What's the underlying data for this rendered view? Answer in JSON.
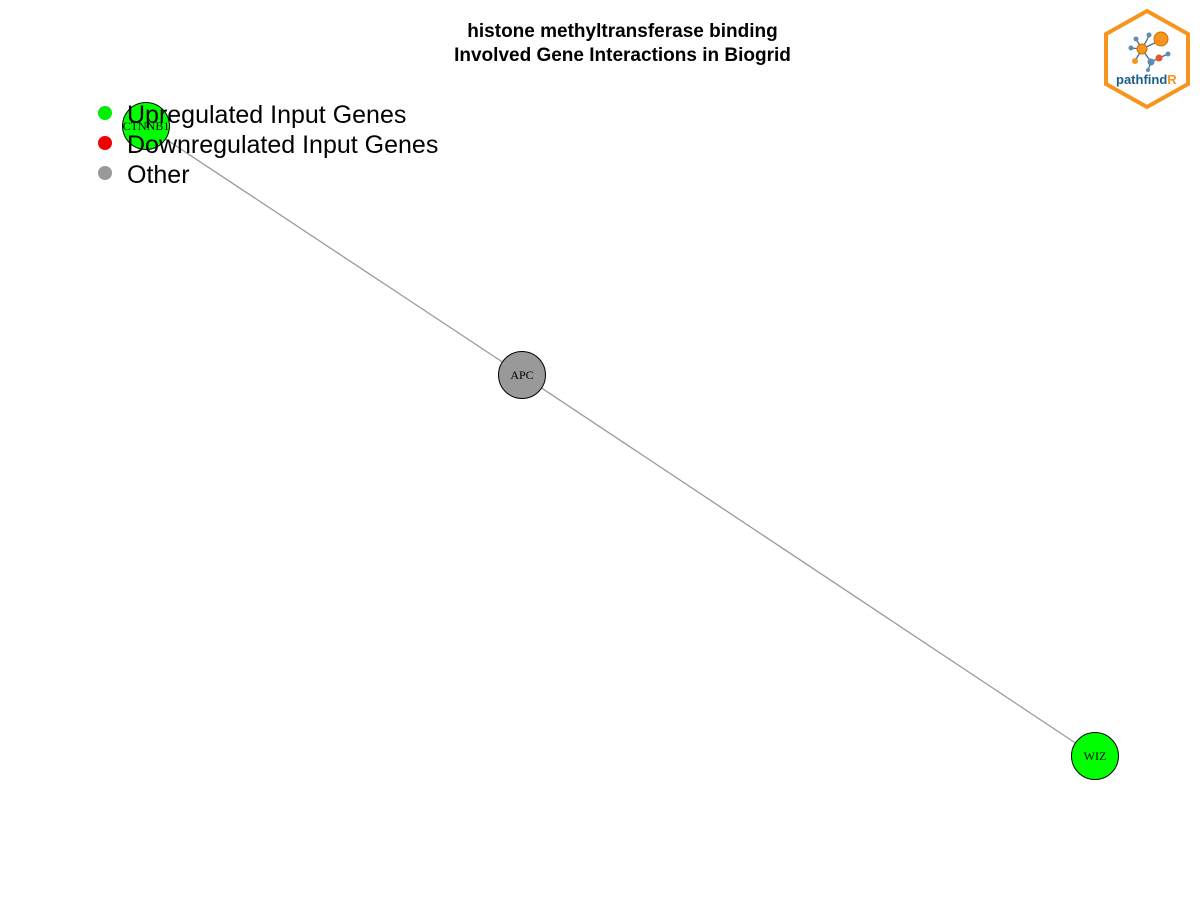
{
  "title": {
    "line1": "histone methyltransferase binding",
    "line2": "Involved Gene Interactions in Biogrid"
  },
  "legend": [
    {
      "label": "Upregulated Input Genes",
      "color": "#00ee00"
    },
    {
      "label": "Downregulated Input Genes",
      "color": "#ee0000"
    },
    {
      "label": "Other",
      "color": "#999999"
    }
  ],
  "network": {
    "nodes": [
      {
        "id": "CTNNB1",
        "label": "CTNNB1",
        "status": "up"
      },
      {
        "id": "APC",
        "label": "APC",
        "status": "other"
      },
      {
        "id": "WIZ",
        "label": "WIZ",
        "status": "up"
      }
    ],
    "edges": [
      {
        "from": "CTNNB1",
        "to": "APC"
      },
      {
        "from": "APC",
        "to": "WIZ"
      }
    ],
    "colors": {
      "up": "#00ff00",
      "down": "#ff0000",
      "other": "#999999",
      "edge": "#9a9a9a"
    }
  },
  "logo": {
    "text_main": "pathfind",
    "text_accent": "R",
    "border_color": "#f7941d",
    "text_color": "#1a5d8a"
  }
}
